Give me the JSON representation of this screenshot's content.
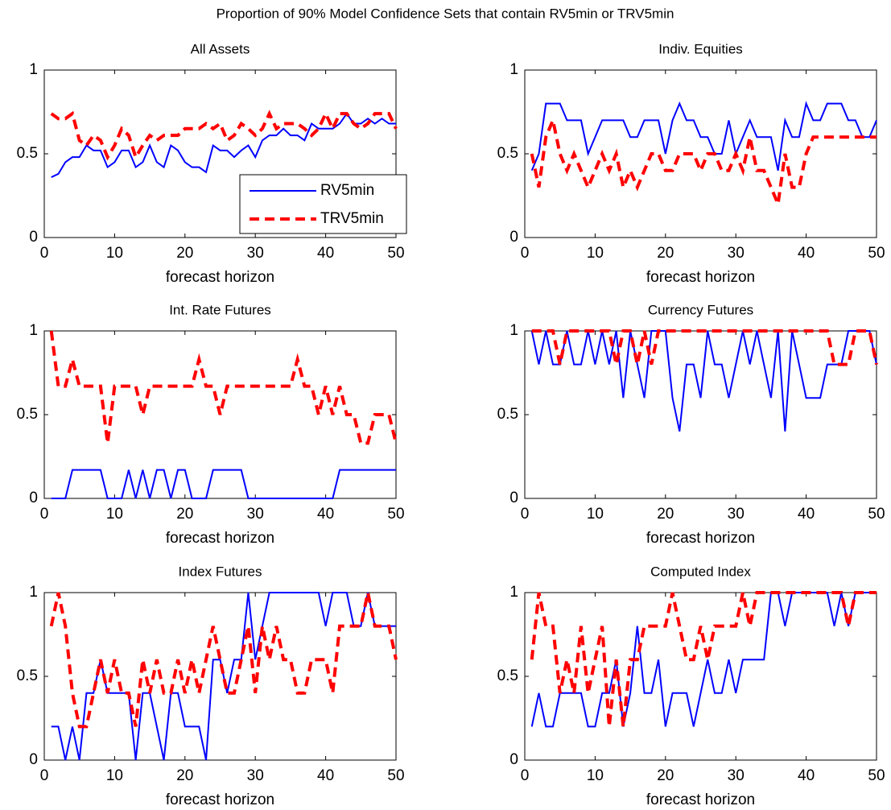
{
  "title": "Proportion of 90% Model Confidence Sets that contain RV5min or TRV5min",
  "chart_data": [
    {
      "type": "line",
      "title": "All Assets",
      "xlabel": "forecast horizon",
      "x": [
        1,
        2,
        3,
        4,
        5,
        6,
        7,
        8,
        9,
        10,
        11,
        12,
        13,
        14,
        15,
        16,
        17,
        18,
        19,
        20,
        21,
        22,
        23,
        24,
        25,
        26,
        27,
        28,
        29,
        30,
        31,
        32,
        33,
        34,
        35,
        36,
        37,
        38,
        39,
        40,
        41,
        42,
        43,
        44,
        45,
        46,
        47,
        48,
        49,
        50
      ],
      "xlim": [
        0,
        50
      ],
      "xticks": [
        0,
        10,
        20,
        30,
        40,
        50
      ],
      "ylim": [
        0,
        1
      ],
      "yticks": [
        0,
        0.5,
        1
      ],
      "legend": "lower right",
      "series": [
        {
          "name": "RV5min",
          "color": "#0000ff",
          "linestyle": "solid",
          "values": [
            0.36,
            0.38,
            0.45,
            0.48,
            0.48,
            0.55,
            0.52,
            0.52,
            0.42,
            0.45,
            0.52,
            0.52,
            0.42,
            0.45,
            0.55,
            0.45,
            0.42,
            0.55,
            0.52,
            0.45,
            0.42,
            0.42,
            0.39,
            0.55,
            0.52,
            0.52,
            0.48,
            0.52,
            0.55,
            0.48,
            0.58,
            0.61,
            0.61,
            0.65,
            0.61,
            0.61,
            0.58,
            0.68,
            0.65,
            0.65,
            0.65,
            0.68,
            0.74,
            0.68,
            0.68,
            0.71,
            0.68,
            0.71,
            0.68,
            0.68
          ]
        },
        {
          "name": "TRV5min",
          "color": "#ff0000",
          "linestyle": "dashed",
          "values": [
            0.74,
            0.71,
            0.71,
            0.74,
            0.58,
            0.55,
            0.61,
            0.58,
            0.48,
            0.55,
            0.65,
            0.61,
            0.48,
            0.55,
            0.61,
            0.58,
            0.61,
            0.61,
            0.61,
            0.65,
            0.65,
            0.65,
            0.68,
            0.65,
            0.68,
            0.58,
            0.61,
            0.68,
            0.65,
            0.61,
            0.65,
            0.74,
            0.65,
            0.68,
            0.68,
            0.68,
            0.65,
            0.61,
            0.65,
            0.74,
            0.65,
            0.74,
            0.74,
            0.68,
            0.65,
            0.68,
            0.74,
            0.74,
            0.74,
            0.65
          ]
        }
      ]
    },
    {
      "type": "line",
      "title": "Indiv. Equities",
      "xlabel": "forecast horizon",
      "x": [
        1,
        2,
        3,
        4,
        5,
        6,
        7,
        8,
        9,
        10,
        11,
        12,
        13,
        14,
        15,
        16,
        17,
        18,
        19,
        20,
        21,
        22,
        23,
        24,
        25,
        26,
        27,
        28,
        29,
        30,
        31,
        32,
        33,
        34,
        35,
        36,
        37,
        38,
        39,
        40,
        41,
        42,
        43,
        44,
        45,
        46,
        47,
        48,
        49,
        50
      ],
      "xlim": [
        0,
        50
      ],
      "xticks": [
        0,
        10,
        20,
        30,
        40,
        50
      ],
      "ylim": [
        0,
        1
      ],
      "yticks": [
        0,
        0.5,
        1
      ],
      "series": [
        {
          "color": "#0000ff",
          "linestyle": "solid",
          "values": [
            0.4,
            0.5,
            0.8,
            0.8,
            0.8,
            0.7,
            0.7,
            0.7,
            0.5,
            0.6,
            0.7,
            0.7,
            0.7,
            0.7,
            0.6,
            0.6,
            0.7,
            0.7,
            0.7,
            0.5,
            0.7,
            0.8,
            0.7,
            0.7,
            0.6,
            0.6,
            0.5,
            0.5,
            0.7,
            0.5,
            0.6,
            0.7,
            0.6,
            0.6,
            0.6,
            0.4,
            0.7,
            0.6,
            0.6,
            0.8,
            0.7,
            0.7,
            0.8,
            0.8,
            0.8,
            0.7,
            0.7,
            0.6,
            0.6,
            0.7
          ]
        },
        {
          "color": "#ff0000",
          "linestyle": "dashed",
          "values": [
            0.5,
            0.3,
            0.6,
            0.7,
            0.5,
            0.4,
            0.5,
            0.4,
            0.3,
            0.4,
            0.5,
            0.4,
            0.5,
            0.3,
            0.4,
            0.3,
            0.4,
            0.5,
            0.5,
            0.4,
            0.4,
            0.5,
            0.5,
            0.5,
            0.4,
            0.5,
            0.5,
            0.4,
            0.4,
            0.5,
            0.4,
            0.6,
            0.4,
            0.4,
            0.3,
            0.2,
            0.5,
            0.3,
            0.3,
            0.5,
            0.6,
            0.6,
            0.6,
            0.6,
            0.6,
            0.6,
            0.6,
            0.6,
            0.6,
            0.6
          ]
        }
      ]
    },
    {
      "type": "line",
      "title": "Int. Rate Futures",
      "xlabel": "forecast horizon",
      "x": [
        1,
        2,
        3,
        4,
        5,
        6,
        7,
        8,
        9,
        10,
        11,
        12,
        13,
        14,
        15,
        16,
        17,
        18,
        19,
        20,
        21,
        22,
        23,
        24,
        25,
        26,
        27,
        28,
        29,
        30,
        31,
        32,
        33,
        34,
        35,
        36,
        37,
        38,
        39,
        40,
        41,
        42,
        43,
        44,
        45,
        46,
        47,
        48,
        49,
        50
      ],
      "xlim": [
        0,
        50
      ],
      "xticks": [
        0,
        10,
        20,
        30,
        40,
        50
      ],
      "ylim": [
        0,
        1
      ],
      "yticks": [
        0,
        0.5,
        1
      ],
      "series": [
        {
          "color": "#0000ff",
          "linestyle": "solid",
          "values": [
            0,
            0,
            0,
            0.17,
            0.17,
            0.17,
            0.17,
            0.17,
            0,
            0,
            0,
            0.17,
            0,
            0.17,
            0,
            0.17,
            0.17,
            0,
            0.17,
            0.17,
            0,
            0,
            0,
            0.17,
            0.17,
            0.17,
            0.17,
            0.17,
            0,
            0,
            0,
            0,
            0,
            0,
            0,
            0,
            0,
            0,
            0,
            0,
            0,
            0.17,
            0.17,
            0.17,
            0.17,
            0.17,
            0.17,
            0.17,
            0.17,
            0.17
          ]
        },
        {
          "color": "#ff0000",
          "linestyle": "dashed",
          "values": [
            1,
            0.67,
            0.67,
            0.83,
            0.67,
            0.67,
            0.67,
            0.67,
            0.33,
            0.67,
            0.67,
            0.67,
            0.67,
            0.5,
            0.67,
            0.67,
            0.67,
            0.67,
            0.67,
            0.67,
            0.67,
            0.83,
            0.67,
            0.67,
            0.5,
            0.67,
            0.67,
            0.67,
            0.67,
            0.67,
            0.67,
            0.67,
            0.67,
            0.67,
            0.67,
            0.83,
            0.67,
            0.67,
            0.5,
            0.67,
            0.5,
            0.67,
            0.5,
            0.5,
            0.33,
            0.33,
            0.5,
            0.5,
            0.5,
            0.33
          ]
        }
      ]
    },
    {
      "type": "line",
      "title": "Currency Futures",
      "xlabel": "forecast horizon",
      "x": [
        1,
        2,
        3,
        4,
        5,
        6,
        7,
        8,
        9,
        10,
        11,
        12,
        13,
        14,
        15,
        16,
        17,
        18,
        19,
        20,
        21,
        22,
        23,
        24,
        25,
        26,
        27,
        28,
        29,
        30,
        31,
        32,
        33,
        34,
        35,
        36,
        37,
        38,
        39,
        40,
        41,
        42,
        43,
        44,
        45,
        46,
        47,
        48,
        49,
        50
      ],
      "xlim": [
        0,
        50
      ],
      "xticks": [
        0,
        10,
        20,
        30,
        40,
        50
      ],
      "ylim": [
        0,
        1
      ],
      "yticks": [
        0,
        0.5,
        1
      ],
      "series": [
        {
          "color": "#0000ff",
          "linestyle": "solid",
          "values": [
            1,
            0.8,
            1,
            0.8,
            0.8,
            1,
            0.8,
            0.8,
            1,
            0.8,
            1,
            0.8,
            1,
            0.6,
            1,
            0.8,
            0.6,
            1,
            1,
            1,
            0.6,
            0.4,
            0.8,
            0.8,
            0.6,
            1,
            0.8,
            0.8,
            0.6,
            0.8,
            1,
            0.8,
            1,
            0.8,
            0.6,
            1,
            0.4,
            1,
            0.8,
            0.6,
            0.6,
            0.6,
            0.8,
            0.8,
            0.8,
            1,
            1,
            1,
            1,
            0.8
          ]
        },
        {
          "color": "#ff0000",
          "linestyle": "dashed",
          "values": [
            1,
            1,
            1,
            1,
            0.8,
            1,
            1,
            1,
            1,
            1,
            1,
            1,
            0.8,
            1,
            1,
            0.8,
            1,
            0.8,
            1,
            1,
            1,
            1,
            1,
            1,
            1,
            1,
            1,
            1,
            1,
            1,
            1,
            1,
            1,
            1,
            1,
            1,
            1,
            1,
            1,
            1,
            1,
            1,
            1,
            0.8,
            0.8,
            0.8,
            1,
            1,
            1,
            0.8
          ]
        }
      ]
    },
    {
      "type": "line",
      "title": "Index Futures",
      "xlabel": "forecast horizon",
      "x": [
        1,
        2,
        3,
        4,
        5,
        6,
        7,
        8,
        9,
        10,
        11,
        12,
        13,
        14,
        15,
        16,
        17,
        18,
        19,
        20,
        21,
        22,
        23,
        24,
        25,
        26,
        27,
        28,
        29,
        30,
        31,
        32,
        33,
        34,
        35,
        36,
        37,
        38,
        39,
        40,
        41,
        42,
        43,
        44,
        45,
        46,
        47,
        48,
        49,
        50
      ],
      "xlim": [
        0,
        50
      ],
      "xticks": [
        0,
        10,
        20,
        30,
        40,
        50
      ],
      "ylim": [
        0,
        1
      ],
      "yticks": [
        0,
        0.5,
        1
      ],
      "series": [
        {
          "color": "#0000ff",
          "linestyle": "solid",
          "values": [
            0.2,
            0.2,
            0,
            0.2,
            0,
            0.4,
            0.4,
            0.6,
            0.4,
            0.4,
            0.4,
            0.4,
            0,
            0.4,
            0.4,
            0.2,
            0,
            0.4,
            0.4,
            0.2,
            0.2,
            0.2,
            0,
            0.6,
            0.6,
            0.4,
            0.6,
            0.6,
            1,
            0.6,
            0.8,
            1,
            1,
            1,
            1,
            1,
            1,
            1,
            1,
            0.8,
            1,
            1,
            1,
            0.8,
            0.8,
            1,
            0.8,
            0.8,
            0.8,
            0.8
          ]
        },
        {
          "color": "#ff0000",
          "linestyle": "dashed",
          "values": [
            0.8,
            1,
            0.8,
            0.4,
            0.2,
            0.2,
            0.4,
            0.6,
            0.4,
            0.6,
            0.4,
            0.4,
            0.2,
            0.6,
            0.4,
            0.6,
            0.4,
            0.4,
            0.6,
            0.4,
            0.6,
            0.4,
            0.6,
            0.8,
            0.6,
            0.4,
            0.4,
            0.6,
            0.8,
            0.4,
            0.8,
            0.6,
            0.8,
            0.6,
            0.6,
            0.4,
            0.4,
            0.6,
            0.6,
            0.6,
            0.4,
            0.8,
            0.8,
            0.8,
            0.8,
            1,
            0.8,
            0.8,
            0.8,
            0.6
          ]
        }
      ]
    },
    {
      "type": "line",
      "title": "Computed Index",
      "xlabel": "forecast horizon",
      "x": [
        1,
        2,
        3,
        4,
        5,
        6,
        7,
        8,
        9,
        10,
        11,
        12,
        13,
        14,
        15,
        16,
        17,
        18,
        19,
        20,
        21,
        22,
        23,
        24,
        25,
        26,
        27,
        28,
        29,
        30,
        31,
        32,
        33,
        34,
        35,
        36,
        37,
        38,
        39,
        40,
        41,
        42,
        43,
        44,
        45,
        46,
        47,
        48,
        49,
        50
      ],
      "xlim": [
        0,
        50
      ],
      "xticks": [
        0,
        10,
        20,
        30,
        40,
        50
      ],
      "ylim": [
        0,
        1
      ],
      "yticks": [
        0,
        0.5,
        1
      ],
      "series": [
        {
          "color": "#0000ff",
          "linestyle": "solid",
          "values": [
            0.2,
            0.4,
            0.2,
            0.2,
            0.4,
            0.4,
            0.4,
            0.4,
            0.2,
            0.2,
            0.4,
            0.4,
            0.6,
            0.2,
            0.4,
            0.8,
            0.4,
            0.4,
            0.6,
            0.2,
            0.4,
            0.4,
            0.4,
            0.2,
            0.4,
            0.6,
            0.4,
            0.4,
            0.6,
            0.4,
            0.6,
            0.6,
            0.6,
            0.6,
            1,
            1,
            0.8,
            1,
            1,
            1,
            1,
            1,
            1,
            0.8,
            1,
            0.8,
            1,
            1,
            1,
            1
          ]
        },
        {
          "color": "#ff0000",
          "linestyle": "dashed",
          "values": [
            0.6,
            1,
            0.8,
            0.8,
            0.4,
            0.6,
            0.4,
            0.8,
            0.4,
            0.6,
            0.8,
            0.2,
            0.6,
            0.2,
            0.6,
            0.6,
            0.8,
            0.8,
            0.8,
            0.8,
            1,
            0.8,
            0.6,
            0.6,
            0.8,
            0.6,
            0.8,
            0.8,
            0.8,
            0.8,
            1,
            0.8,
            1,
            1,
            1,
            1,
            1,
            1,
            1,
            1,
            1,
            1,
            1,
            1,
            1,
            0.8,
            1,
            1,
            1,
            1
          ]
        }
      ]
    }
  ]
}
